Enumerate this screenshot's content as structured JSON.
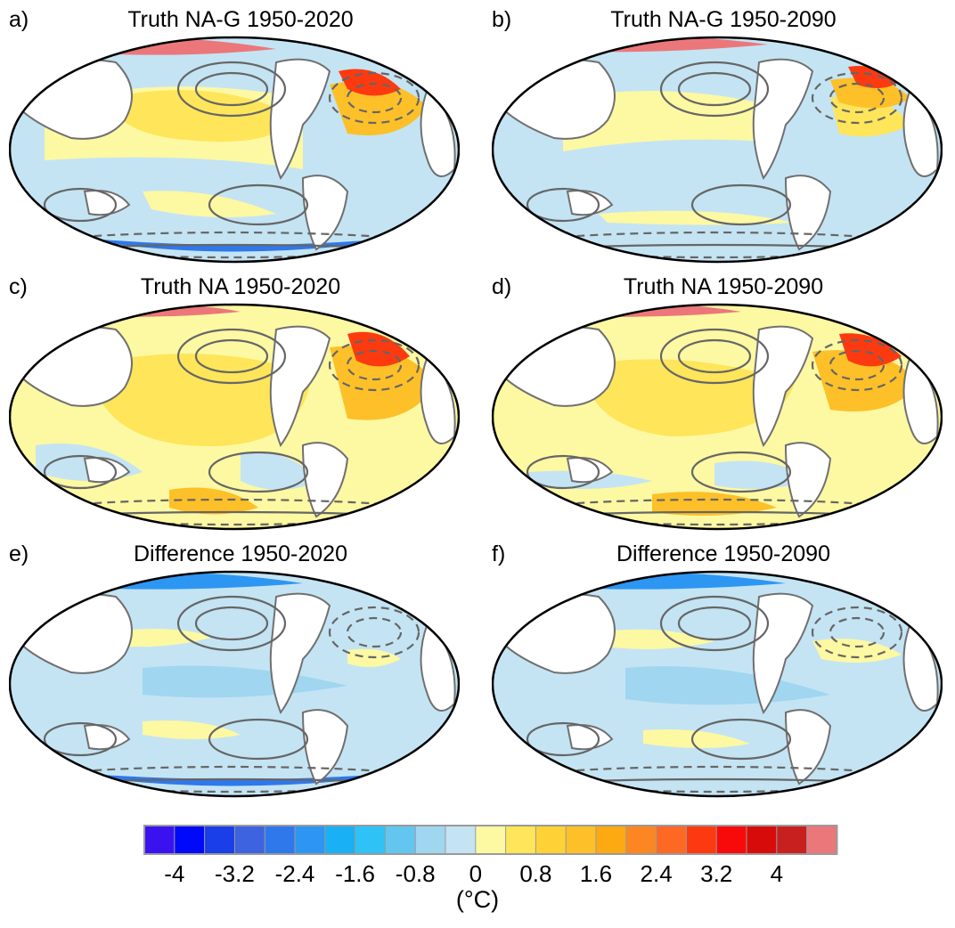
{
  "panels": [
    {
      "letter": "a)",
      "title": "Truth NA-G 1950-2020"
    },
    {
      "letter": "b)",
      "title": "Truth NA-G 1950-2090"
    },
    {
      "letter": "c)",
      "title": "Truth NA 1950-2020"
    },
    {
      "letter": "d)",
      "title": "Truth NA 1950-2090"
    },
    {
      "letter": "e)",
      "title": "Difference 1950-2020"
    },
    {
      "letter": "f)",
      "title": "Difference 1950-2090"
    }
  ],
  "colorbar": {
    "colors": [
      "#3a12f0",
      "#0009f8",
      "#1a3ee8",
      "#3d63e0",
      "#2f78ec",
      "#2d96f2",
      "#1ab0f6",
      "#2fc2f6",
      "#63c6ef",
      "#a0d6f0",
      "#c4e4f4",
      "#fdf8a2",
      "#fee55a",
      "#fdd237",
      "#fdc028",
      "#fda912",
      "#fc8722",
      "#fd6823",
      "#fd3a0f",
      "#f80a0a",
      "#d80b0b",
      "#c8201e",
      "#ec777a"
    ],
    "tick_labels": [
      "-4",
      "-3.2",
      "-2.4",
      "-1.6",
      "-0.8",
      "0",
      "0.8",
      "1.6",
      "2.4",
      "3.2",
      "4"
    ],
    "unit": "(°C)"
  }
}
